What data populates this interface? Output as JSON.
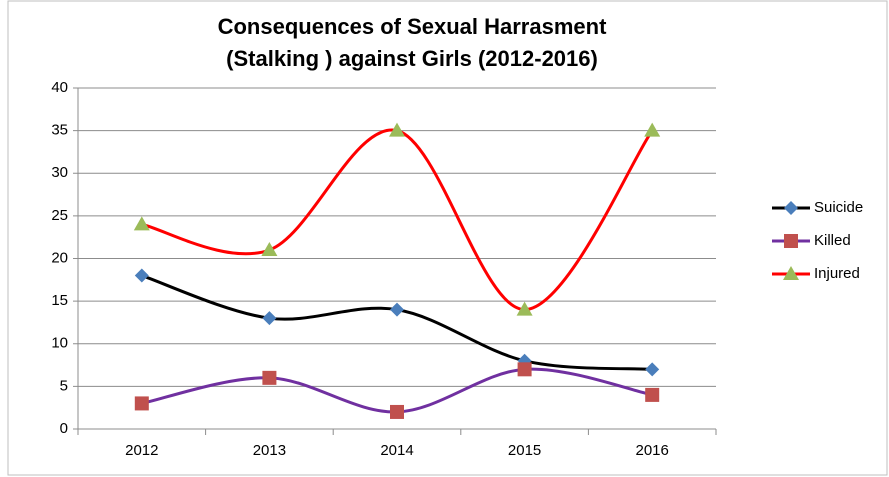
{
  "chart_data": {
    "type": "line",
    "title": [
      "Consequences of Sexual Harrasment",
      "(Stalking ) against  Girls (2012-2016)"
    ],
    "categories": [
      "2012",
      "2013",
      "2014",
      "2015",
      "2016"
    ],
    "series": [
      {
        "name": "Suicide",
        "color": "#000000",
        "marker": "diamond",
        "marker_color": "#4a7ebb",
        "values": [
          18,
          13,
          14,
          8,
          7
        ]
      },
      {
        "name": "Killed",
        "color": "#7030a0",
        "marker": "square",
        "marker_color": "#c0504d",
        "values": [
          3,
          6,
          2,
          7,
          4
        ]
      },
      {
        "name": "Injured",
        "color": "#ff0000",
        "marker": "triangle",
        "marker_color": "#9bbb59",
        "values": [
          24,
          21,
          35,
          14,
          35
        ]
      }
    ],
    "ylim": [
      0,
      40
    ],
    "yticks": [
      0,
      5,
      10,
      15,
      20,
      25,
      30,
      35,
      40
    ],
    "grid": true,
    "smooth": true,
    "legend": "right"
  }
}
